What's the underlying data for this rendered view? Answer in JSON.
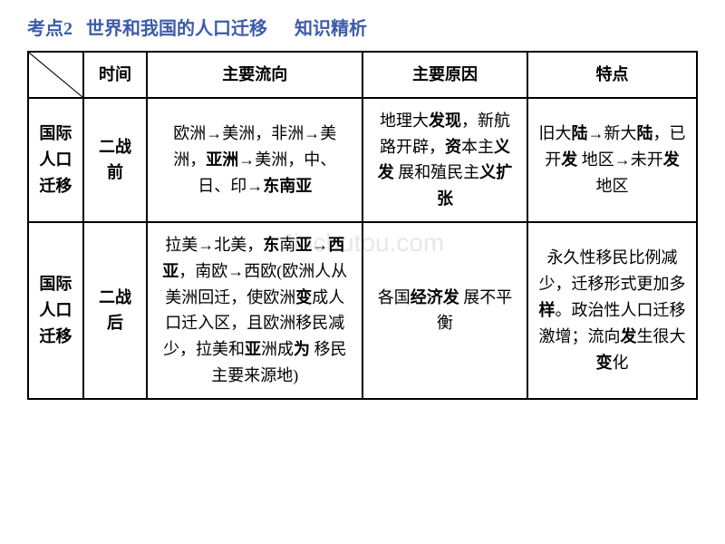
{
  "header": {
    "topic_label": "考点2",
    "topic_title": "世界和我国的人口迁移",
    "section_label": "知识精析"
  },
  "watermark": "Jinchutou.com",
  "table": {
    "header_row": {
      "time": "时间",
      "flow": "主要流向",
      "reason": "主要原因",
      "feature": "特点"
    },
    "rows": [
      {
        "category": "国际人口迁移",
        "time": "二战前",
        "flow_html": "欧洲→美洲，非洲→美洲，<b>亚洲</b>→美洲，中、日、印→<b>东南亚</b>",
        "reason_html": "地理大<b>发现</b>，新航路开辟，<b>资</b>本主<b>义发</b> 展和殖民主<b>义扩张</b>",
        "feature_html": "旧大<b>陆</b>→新大<b>陆</b>，已开<b>发</b> 地区→未开<b>发</b> 地区"
      },
      {
        "category": "国际人口迁移",
        "time": "二战后",
        "flow_html": "拉美→北美，<b>东</b>南<b>亚</b>→<b>西亚</b>，南欧→西欧(欧洲人从美洲回迁，使欧洲<b>变</b>成人口迁入区，且欧洲移民减少，拉美和<b>亚</b>洲成<b>为</b> 移民主要来源地)",
        "reason_html": "各国<b>经济发</b> 展不平衡",
        "feature_html": "永久性移民比例减少，迁移形式更加多<b>样</b>。政治性人口迁移激增；流向<b>发</b>生很大<b>变</b>化"
      }
    ]
  },
  "colors": {
    "header_text": "#3d5ba9",
    "border": "#000000",
    "background": "#ffffff",
    "watermark": "#d8d8d8"
  }
}
